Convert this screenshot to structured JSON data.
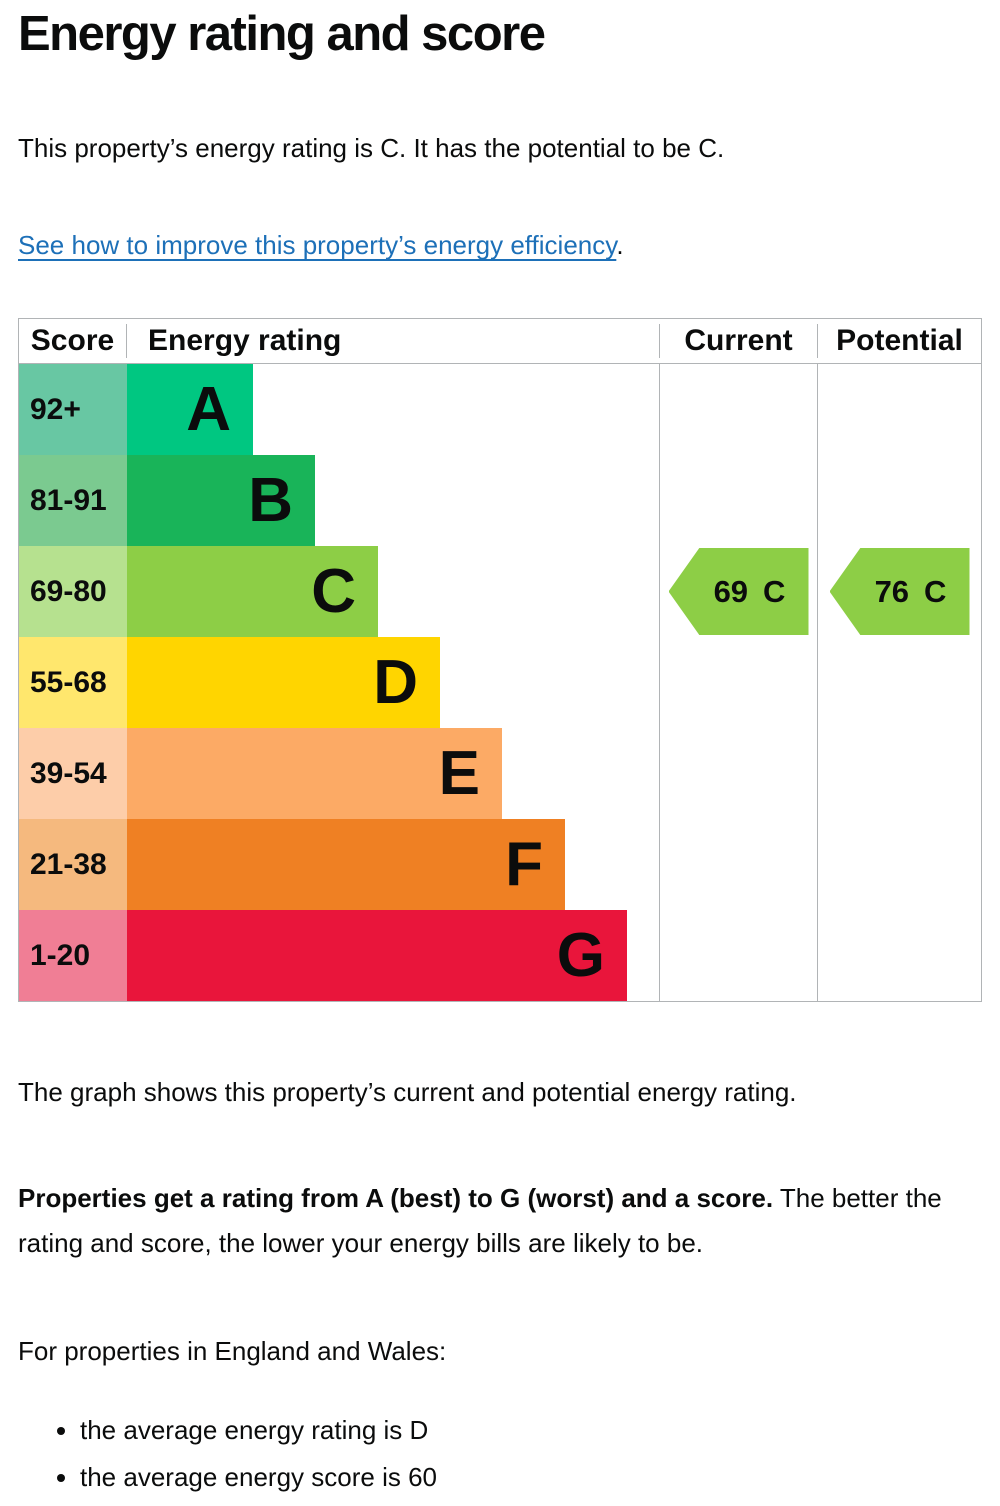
{
  "page": {
    "title": "Energy rating and score",
    "intro": "This property’s energy rating is C. It has the potential to be C.",
    "link_text": "See how to improve this property’s energy efficiency",
    "link_suffix": ".",
    "caption": "The graph shows this property’s current and potential energy rating.",
    "explain_bold": "Properties get a rating from A (best) to G (worst) and a score.",
    "explain_rest": "The better the rating and score, the lower your energy bills are likely to be.",
    "region_heading": "For properties in England and Wales:",
    "bullets": [
      "the average energy rating is D",
      "the average energy score is 60"
    ]
  },
  "colors": {
    "text": "#0b0c0c",
    "link": "#1d70b8",
    "table_border": "#b1b4b6",
    "arrow": "#8dce46"
  },
  "chart_data": {
    "type": "bar",
    "title": "EPC energy rating graph",
    "columns": [
      "Score",
      "Energy rating",
      "Current",
      "Potential"
    ],
    "bands": [
      {
        "band": "A",
        "range": "92+",
        "min": 92,
        "max": 100,
        "color": "#00c781",
        "score_tint": "#68c7a3"
      },
      {
        "band": "B",
        "range": "81-91",
        "min": 81,
        "max": 91,
        "color": "#19b459",
        "score_tint": "#7bca90"
      },
      {
        "band": "C",
        "range": "69-80",
        "min": 69,
        "max": 80,
        "color": "#8dce46",
        "score_tint": "#b6e18f"
      },
      {
        "band": "D",
        "range": "55-68",
        "min": 55,
        "max": 68,
        "color": "#ffd500",
        "score_tint": "#ffe76d"
      },
      {
        "band": "E",
        "range": "39-54",
        "min": 39,
        "max": 54,
        "color": "#fcaa65",
        "score_tint": "#fdcda9"
      },
      {
        "band": "F",
        "range": "21-38",
        "min": 21,
        "max": 38,
        "color": "#ef8023",
        "score_tint": "#f5b97e"
      },
      {
        "band": "G",
        "range": "1-20",
        "min": 1,
        "max": 20,
        "color": "#e9153b",
        "score_tint": "#f07e95"
      }
    ],
    "current": {
      "score": 69,
      "band": "C",
      "color": "#8dce46"
    },
    "potential": {
      "score": 76,
      "band": "C",
      "color": "#8dce46"
    }
  }
}
